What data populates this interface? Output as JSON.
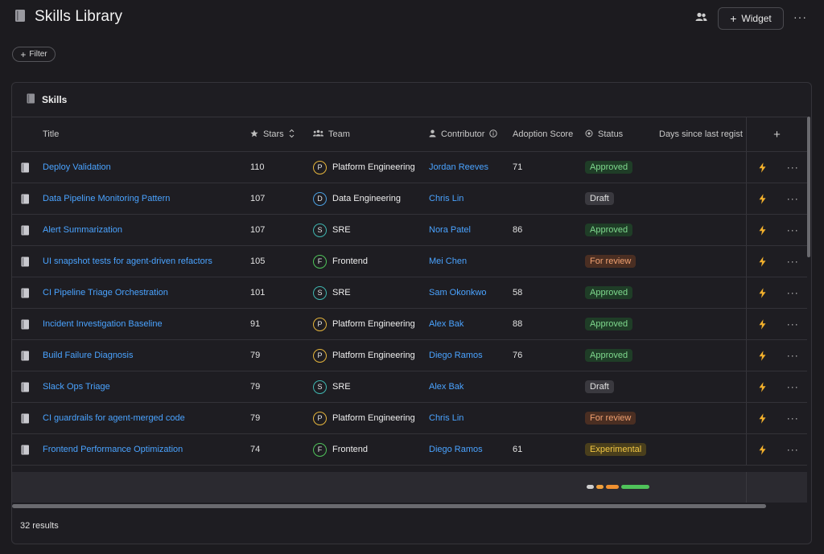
{
  "header": {
    "title": "Skills Library",
    "widget_label": "Widget",
    "more": "···"
  },
  "filter": {
    "label": "Filter"
  },
  "panel": {
    "title": "Skills",
    "columns": {
      "title": "Title",
      "stars": "Stars",
      "team": "Team",
      "contributor": "Contributor",
      "adoption": "Adoption Score",
      "status": "Status",
      "days": "Days since last regist",
      "add": "+"
    },
    "rows": [
      {
        "title": "Deploy Validation",
        "stars": "110",
        "team_initial": "P",
        "team": "Platform Engineering",
        "contributor": "Jordan Reeves",
        "score": "71",
        "status": "Approved"
      },
      {
        "title": "Data Pipeline Monitoring Pattern",
        "stars": "107",
        "team_initial": "D",
        "team": "Data Engineering",
        "contributor": "Chris Lin",
        "score": "",
        "status": "Draft"
      },
      {
        "title": "Alert Summarization",
        "stars": "107",
        "team_initial": "S",
        "team": "SRE",
        "contributor": "Nora Patel",
        "score": "86",
        "status": "Approved"
      },
      {
        "title": "UI snapshot tests for agent-driven refactors",
        "stars": "105",
        "team_initial": "F",
        "team": "Frontend",
        "contributor": "Mei Chen",
        "score": "",
        "status": "For review"
      },
      {
        "title": "CI Pipeline Triage Orchestration",
        "stars": "101",
        "team_initial": "S",
        "team": "SRE",
        "contributor": "Sam Okonkwo",
        "score": "58",
        "status": "Approved"
      },
      {
        "title": "Incident Investigation Baseline",
        "stars": "91",
        "team_initial": "P",
        "team": "Platform Engineering",
        "contributor": "Alex Bak",
        "score": "88",
        "status": "Approved"
      },
      {
        "title": "Build Failure Diagnosis",
        "stars": "79",
        "team_initial": "P",
        "team": "Platform Engineering",
        "contributor": "Diego Ramos",
        "score": "76",
        "status": "Approved"
      },
      {
        "title": "Slack Ops Triage",
        "stars": "79",
        "team_initial": "S",
        "team": "SRE",
        "contributor": "Alex Bak",
        "score": "",
        "status": "Draft"
      },
      {
        "title": "CI guardrails for agent-merged code",
        "stars": "79",
        "team_initial": "P",
        "team": "Platform Engineering",
        "contributor": "Chris Lin",
        "score": "",
        "status": "For review"
      },
      {
        "title": "Frontend Performance Optimization",
        "stars": "74",
        "team_initial": "F",
        "team": "Frontend",
        "contributor": "Diego Ramos",
        "score": "61",
        "status": "Experimental"
      }
    ],
    "results": "32 results"
  },
  "colors": {
    "link": "#4aa3ff",
    "team": {
      "P": "#e5b53c",
      "D": "#4a9fe0",
      "S": "#3fb6b0",
      "F": "#4fc35a"
    },
    "status": {
      "Approved": {
        "bg": "#1f3d27",
        "fg": "#7fd98e"
      },
      "Draft": {
        "bg": "#3a393f",
        "fg": "#e0e0e0"
      },
      "For review": {
        "bg": "#4a2e22",
        "fg": "#f0a070"
      },
      "Experimental": {
        "bg": "#4a3f1c",
        "fg": "#f2c744"
      }
    },
    "summary_segments": [
      "#cfcfcf",
      "#f0a03c",
      "#f09030",
      "#4fc35a"
    ]
  }
}
